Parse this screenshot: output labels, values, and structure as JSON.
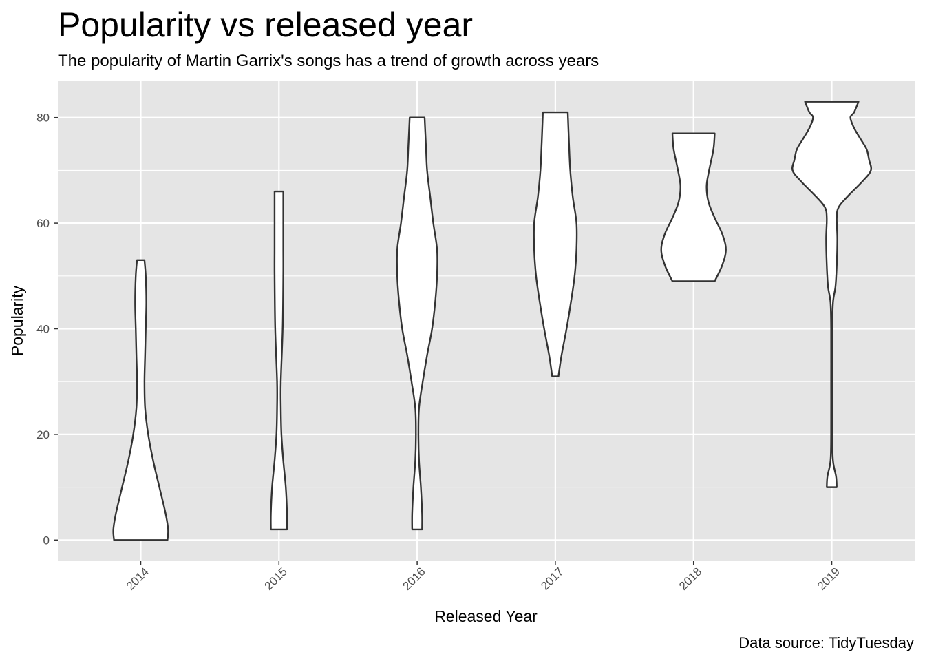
{
  "chart_data": {
    "type": "violin",
    "title": "Popularity vs released year",
    "subtitle": "The popularity of Martin Garrix's songs has a trend of growth across years",
    "caption": "Data source: TidyTuesday",
    "xlabel": "Released Year",
    "ylabel": "Popularity",
    "categories": [
      "2014",
      "2015",
      "2016",
      "2017",
      "2018",
      "2019"
    ],
    "ylim": [
      -4,
      87
    ],
    "yticks": [
      0,
      20,
      40,
      60,
      80
    ],
    "grid": true,
    "colors": {
      "panel": "#e5e5e5",
      "grid": "#ffffff",
      "violin_fill": "#ffffff",
      "violin_stroke": "#333333"
    },
    "series": [
      {
        "category": "2014",
        "min": 0,
        "max": 53,
        "profile": [
          [
            0,
            0.43
          ],
          [
            2,
            0.44
          ],
          [
            5,
            0.4
          ],
          [
            10,
            0.3
          ],
          [
            15,
            0.2
          ],
          [
            20,
            0.12
          ],
          [
            25,
            0.07
          ],
          [
            30,
            0.06
          ],
          [
            35,
            0.07
          ],
          [
            40,
            0.08
          ],
          [
            45,
            0.09
          ],
          [
            50,
            0.08
          ],
          [
            53,
            0.06
          ]
        ]
      },
      {
        "category": "2015",
        "min": 2,
        "max": 66,
        "profile": [
          [
            2,
            0.13
          ],
          [
            5,
            0.13
          ],
          [
            10,
            0.11
          ],
          [
            15,
            0.07
          ],
          [
            20,
            0.04
          ],
          [
            25,
            0.03
          ],
          [
            30,
            0.03
          ],
          [
            40,
            0.06
          ],
          [
            50,
            0.07
          ],
          [
            55,
            0.07
          ],
          [
            60,
            0.07
          ],
          [
            65,
            0.07
          ],
          [
            66,
            0.07
          ]
        ]
      },
      {
        "category": "2016",
        "min": 2,
        "max": 80,
        "profile": [
          [
            2,
            0.08
          ],
          [
            5,
            0.08
          ],
          [
            10,
            0.06
          ],
          [
            15,
            0.03
          ],
          [
            20,
            0.02
          ],
          [
            25,
            0.03
          ],
          [
            30,
            0.09
          ],
          [
            35,
            0.16
          ],
          [
            40,
            0.24
          ],
          [
            45,
            0.29
          ],
          [
            50,
            0.32
          ],
          [
            55,
            0.32
          ],
          [
            60,
            0.26
          ],
          [
            65,
            0.21
          ],
          [
            70,
            0.16
          ],
          [
            75,
            0.14
          ],
          [
            80,
            0.12
          ]
        ]
      },
      {
        "category": "2017",
        "min": 31,
        "max": 81,
        "profile": [
          [
            31,
            0.05
          ],
          [
            35,
            0.1
          ],
          [
            40,
            0.18
          ],
          [
            45,
            0.25
          ],
          [
            50,
            0.31
          ],
          [
            55,
            0.34
          ],
          [
            60,
            0.34
          ],
          [
            65,
            0.28
          ],
          [
            70,
            0.24
          ],
          [
            75,
            0.22
          ],
          [
            81,
            0.2
          ]
        ]
      },
      {
        "category": "2018",
        "min": 49,
        "max": 77,
        "profile": [
          [
            49,
            0.34
          ],
          [
            52,
            0.46
          ],
          [
            55,
            0.52
          ],
          [
            58,
            0.46
          ],
          [
            61,
            0.34
          ],
          [
            64,
            0.24
          ],
          [
            67,
            0.21
          ],
          [
            70,
            0.25
          ],
          [
            74,
            0.32
          ],
          [
            77,
            0.34
          ]
        ]
      },
      {
        "category": "2019",
        "min": 10,
        "max": 83,
        "profile": [
          [
            10,
            0.08
          ],
          [
            12,
            0.07
          ],
          [
            15,
            0.02
          ],
          [
            20,
            0.01
          ],
          [
            30,
            0.01
          ],
          [
            40,
            0.01
          ],
          [
            45,
            0.02
          ],
          [
            48,
            0.06
          ],
          [
            52,
            0.08
          ],
          [
            57,
            0.09
          ],
          [
            61,
            0.08
          ],
          [
            63,
            0.11
          ],
          [
            65,
            0.25
          ],
          [
            68,
            0.5
          ],
          [
            70,
            0.63
          ],
          [
            72,
            0.6
          ],
          [
            74,
            0.56
          ],
          [
            76,
            0.46
          ],
          [
            78,
            0.36
          ],
          [
            80,
            0.3
          ],
          [
            81,
            0.36
          ],
          [
            83,
            0.43
          ]
        ]
      }
    ]
  }
}
